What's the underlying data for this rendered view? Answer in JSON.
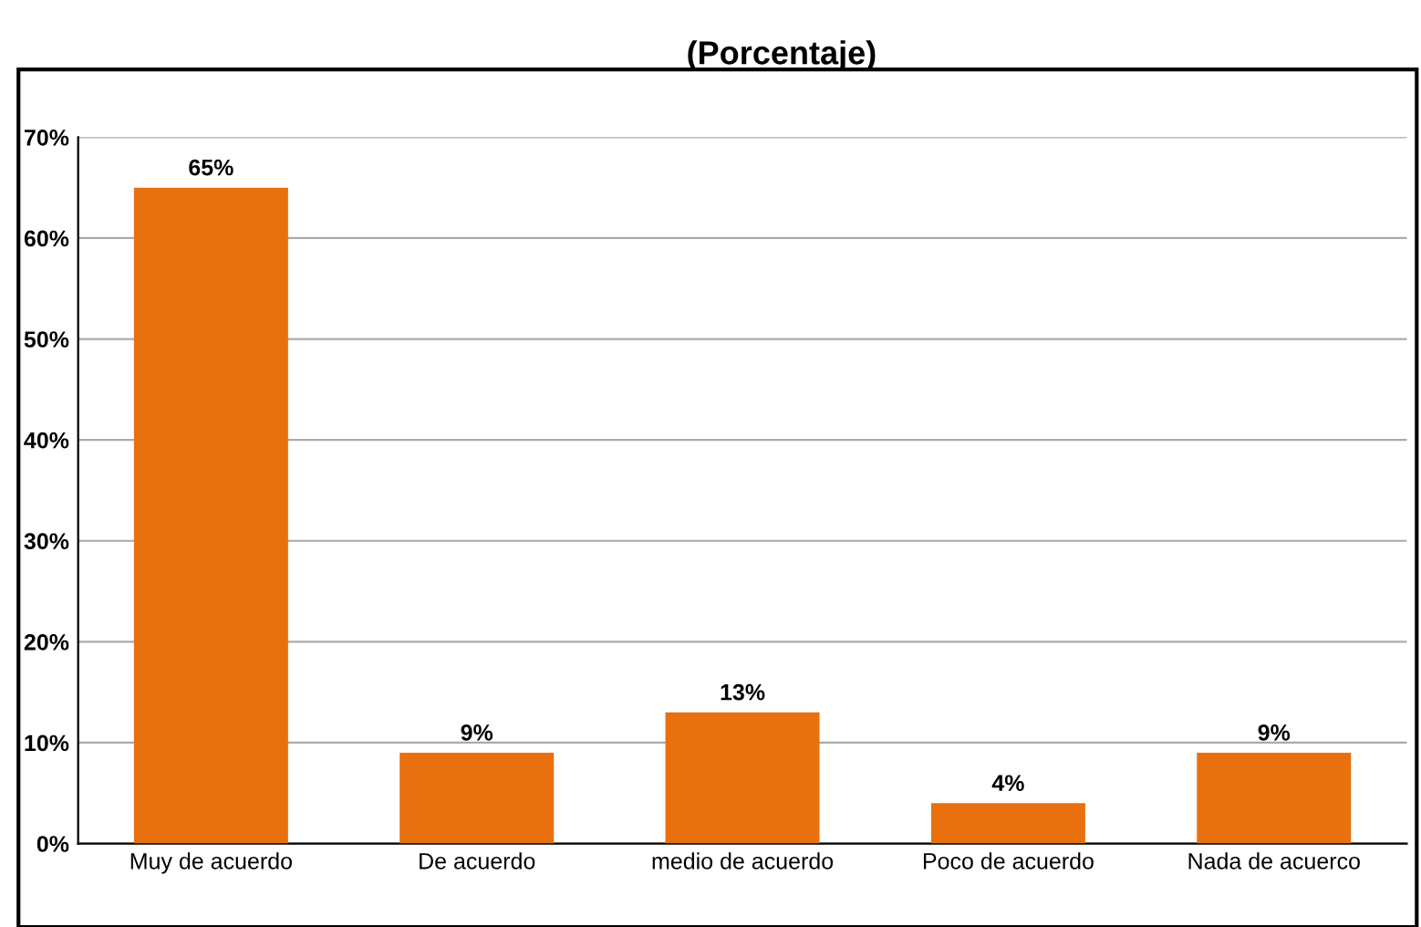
{
  "chart_data": {
    "type": "bar",
    "title": "(Porcentaje)",
    "categories": [
      "Muy de acuerdo",
      "De acuerdo",
      "medio de acuerdo",
      "Poco de acuerdo",
      "Nada de acuerco"
    ],
    "values": [
      65,
      9,
      13,
      4,
      9
    ],
    "color": "#e8700f",
    "value_labels": [
      "65%",
      "9%",
      "13%",
      "4%",
      "9%"
    ],
    "ylim": [
      0,
      70
    ],
    "yticks": [
      {
        "value": 0,
        "label": "0%"
      },
      {
        "value": 10,
        "label": "10%"
      },
      {
        "value": 20,
        "label": "20%"
      },
      {
        "value": 30,
        "label": "30%"
      },
      {
        "value": 40,
        "label": "40%"
      },
      {
        "value": 50,
        "label": "50%"
      },
      {
        "value": 60,
        "label": "60%"
      },
      {
        "value": 70,
        "label": "70%"
      }
    ],
    "grid": "y"
  }
}
